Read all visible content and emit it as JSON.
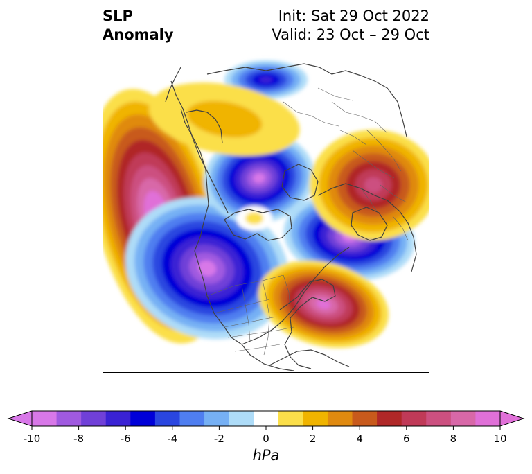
{
  "title": {
    "left_line1": "SLP",
    "left_line2": "Anomaly",
    "right_line1": "Init: Sat 29 Oct 2022",
    "right_line2": "Valid: 23 Oct – 29 Oct"
  },
  "colorbar": {
    "unit": "hPa",
    "ticks": [
      "-10",
      "-8",
      "-6",
      "-4",
      "-2",
      "0",
      "2",
      "4",
      "6",
      "8",
      "10"
    ],
    "levels": [
      -10,
      -9,
      -8,
      -7,
      -6,
      -5,
      -4,
      -3,
      -2,
      -1,
      1,
      2,
      3,
      4,
      5,
      6,
      7,
      8,
      9,
      10
    ],
    "colors": [
      "#d878e8",
      "#a05ae0",
      "#7040d8",
      "#3a22d4",
      "#0000d8",
      "#2a46e0",
      "#4f7ef0",
      "#76b0f4",
      "#aedcf8",
      "#ffffff",
      "#fbdf4a",
      "#f0b400",
      "#e08a10",
      "#c85a1c",
      "#b02828",
      "#c03a58",
      "#cc5080",
      "#d868a8",
      "#e070d8"
    ],
    "extend_low_color": "#d878e8",
    "extend_high_color": "#e070d8"
  },
  "map": {
    "projection": "north polar stereographic",
    "field": "sea level pressure anomaly",
    "anomaly_centers": [
      {
        "sign": "positive",
        "region": "North Pacific / Gulf of Alaska",
        "peak": 10
      },
      {
        "sign": "positive",
        "region": "North Atlantic off Newfoundland",
        "peak": 8
      },
      {
        "sign": "positive",
        "region": "Eastern Europe / western Russia",
        "peak": 6
      },
      {
        "sign": "positive",
        "region": "Siberia",
        "peak": 2
      },
      {
        "sign": "negative",
        "region": "Canadian Arctic / Hudson Bay",
        "peak": -10
      },
      {
        "sign": "negative",
        "region": "Greenland to Norwegian Sea",
        "peak": -10
      },
      {
        "sign": "negative",
        "region": "East Siberian Sea",
        "peak": -10
      },
      {
        "sign": "negative",
        "region": "Northern Eurasia",
        "peak": -6
      }
    ]
  }
}
